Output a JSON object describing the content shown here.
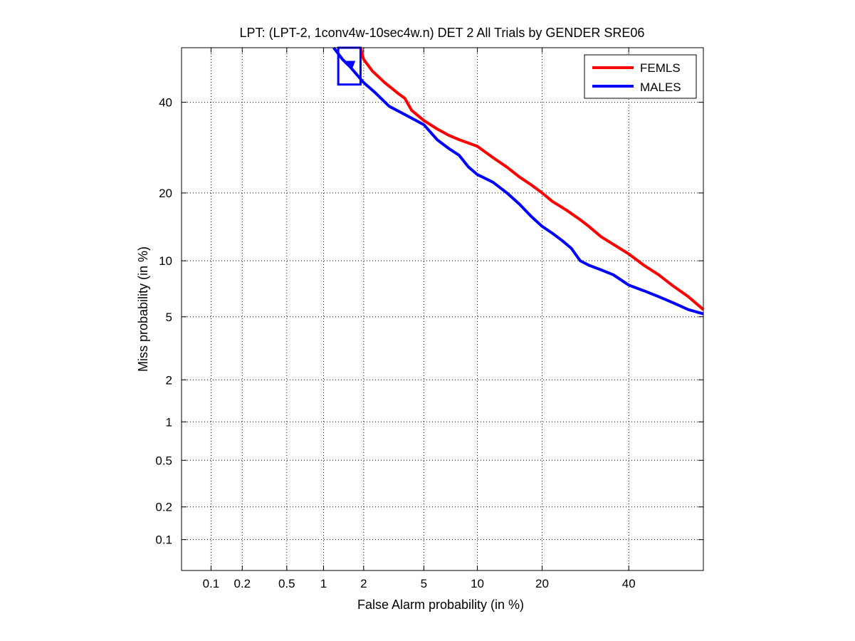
{
  "chart_data": {
    "type": "line",
    "title": "LPT: (LPT-2, 1conv4w-10sec4w.n) DET 2 All Trials by GENDER SRE06",
    "xlabel": "False Alarm probability (in %)",
    "ylabel": "Miss probability (in %)",
    "scale": "normal-deviate (probit) on both axes",
    "xlim": [
      0.05,
      60
    ],
    "ylim": [
      0.05,
      54
    ],
    "x_ticks": [
      0.1,
      0.2,
      0.5,
      1,
      2,
      5,
      10,
      20,
      40
    ],
    "x_tick_labels": [
      "0.1",
      "0.2",
      "0.5",
      "1",
      "2",
      "5",
      "10",
      "20",
      "40"
    ],
    "y_ticks": [
      0.1,
      0.2,
      0.5,
      1,
      2,
      5,
      10,
      20,
      40
    ],
    "y_tick_labels": [
      "0.1",
      "0.2",
      "0.5",
      "1",
      "2",
      "5",
      "10",
      "20",
      "40"
    ],
    "grid": true,
    "grid_style": "dotted",
    "legend_position": "top-right",
    "series": [
      {
        "name": "FEMLS",
        "color": "#ff0000",
        "points": [
          [
            1.9,
            54
          ],
          [
            2.0,
            51
          ],
          [
            2.3,
            48
          ],
          [
            2.8,
            45
          ],
          [
            3.5,
            42
          ],
          [
            3.8,
            41
          ],
          [
            4.2,
            38
          ],
          [
            5.0,
            35.5
          ],
          [
            6.0,
            33.5
          ],
          [
            7.0,
            32
          ],
          [
            8.0,
            31
          ],
          [
            10.0,
            29.5
          ],
          [
            12.0,
            27
          ],
          [
            14.0,
            25
          ],
          [
            16.0,
            23
          ],
          [
            18.0,
            21.5
          ],
          [
            20.0,
            20
          ],
          [
            22.0,
            18.5
          ],
          [
            25.0,
            17
          ],
          [
            28.0,
            15.5
          ],
          [
            30.0,
            14.5
          ],
          [
            33.0,
            13
          ],
          [
            36.0,
            12
          ],
          [
            40.0,
            10.8
          ],
          [
            44.0,
            9.5
          ],
          [
            48.0,
            8.5
          ],
          [
            52.0,
            7.4
          ],
          [
            56.0,
            6.5
          ],
          [
            60.0,
            5.5
          ]
        ]
      },
      {
        "name": "MALES",
        "color": "#0000ff",
        "points": [
          [
            1.2,
            54
          ],
          [
            1.4,
            51
          ],
          [
            1.6,
            49
          ],
          [
            2.0,
            45
          ],
          [
            2.4,
            42.5
          ],
          [
            3.0,
            39
          ],
          [
            4.0,
            36.5
          ],
          [
            5.0,
            34.5
          ],
          [
            6.0,
            31
          ],
          [
            7.0,
            29
          ],
          [
            8.0,
            27.5
          ],
          [
            9.0,
            25
          ],
          [
            10.0,
            23.5
          ],
          [
            12.0,
            22
          ],
          [
            14.0,
            20
          ],
          [
            16.0,
            18
          ],
          [
            18.0,
            16
          ],
          [
            20.0,
            14.5
          ],
          [
            22.0,
            13.5
          ],
          [
            24.0,
            12.5
          ],
          [
            26.0,
            11.5
          ],
          [
            28.0,
            10
          ],
          [
            30.0,
            9.5
          ],
          [
            33.0,
            9
          ],
          [
            36.0,
            8.5
          ],
          [
            40.0,
            7.5
          ],
          [
            44.0,
            7
          ],
          [
            48.0,
            6.5
          ],
          [
            52.0,
            6
          ],
          [
            56.0,
            5.5
          ],
          [
            60.0,
            5.2
          ]
        ]
      }
    ],
    "annotations": [
      {
        "type": "operating-point-box",
        "series": "MALES",
        "color": "#0000ff",
        "x_range": [
          1.3,
          1.9
        ],
        "y_range": [
          44.5,
          54
        ],
        "marker": "filled-triangle",
        "marker_at": [
          1.6,
          49.5
        ]
      }
    ]
  }
}
